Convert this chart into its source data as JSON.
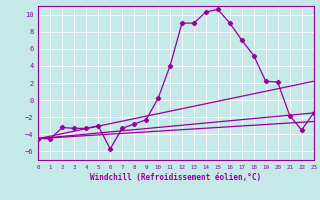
{
  "xlabel": "Windchill (Refroidissement éolien,°C)",
  "background_color": "#c5e8e8",
  "grid_color": "#ffffff",
  "line_color": "#990099",
  "ylim": [
    -7,
    11
  ],
  "xlim": [
    0,
    23
  ],
  "yticks": [
    -6,
    -4,
    -2,
    0,
    2,
    4,
    6,
    8,
    10
  ],
  "xticks": [
    0,
    1,
    2,
    3,
    4,
    5,
    6,
    7,
    8,
    9,
    10,
    11,
    12,
    13,
    14,
    15,
    16,
    17,
    18,
    19,
    20,
    21,
    22,
    23
  ],
  "line1_x": [
    0,
    1,
    2,
    3,
    4,
    5,
    6,
    7,
    8,
    9,
    10,
    11,
    12,
    13,
    14,
    15,
    16,
    17,
    18,
    19,
    20,
    21,
    22,
    23
  ],
  "line1_y": [
    -4.5,
    -4.5,
    -3.2,
    -3.3,
    -3.3,
    -3.0,
    -5.7,
    -3.3,
    -2.8,
    -2.3,
    0.2,
    4.0,
    9.0,
    9.0,
    10.3,
    10.6,
    9.0,
    7.0,
    5.2,
    2.2,
    2.1,
    -1.8,
    -3.5,
    -1.5
  ],
  "line2_x": [
    0,
    23
  ],
  "line2_y": [
    -4.5,
    2.2
  ],
  "line3_x": [
    0,
    23
  ],
  "line3_y": [
    -4.5,
    -1.5
  ],
  "line4_x": [
    0,
    23
  ],
  "line4_y": [
    -4.5,
    -2.5
  ]
}
